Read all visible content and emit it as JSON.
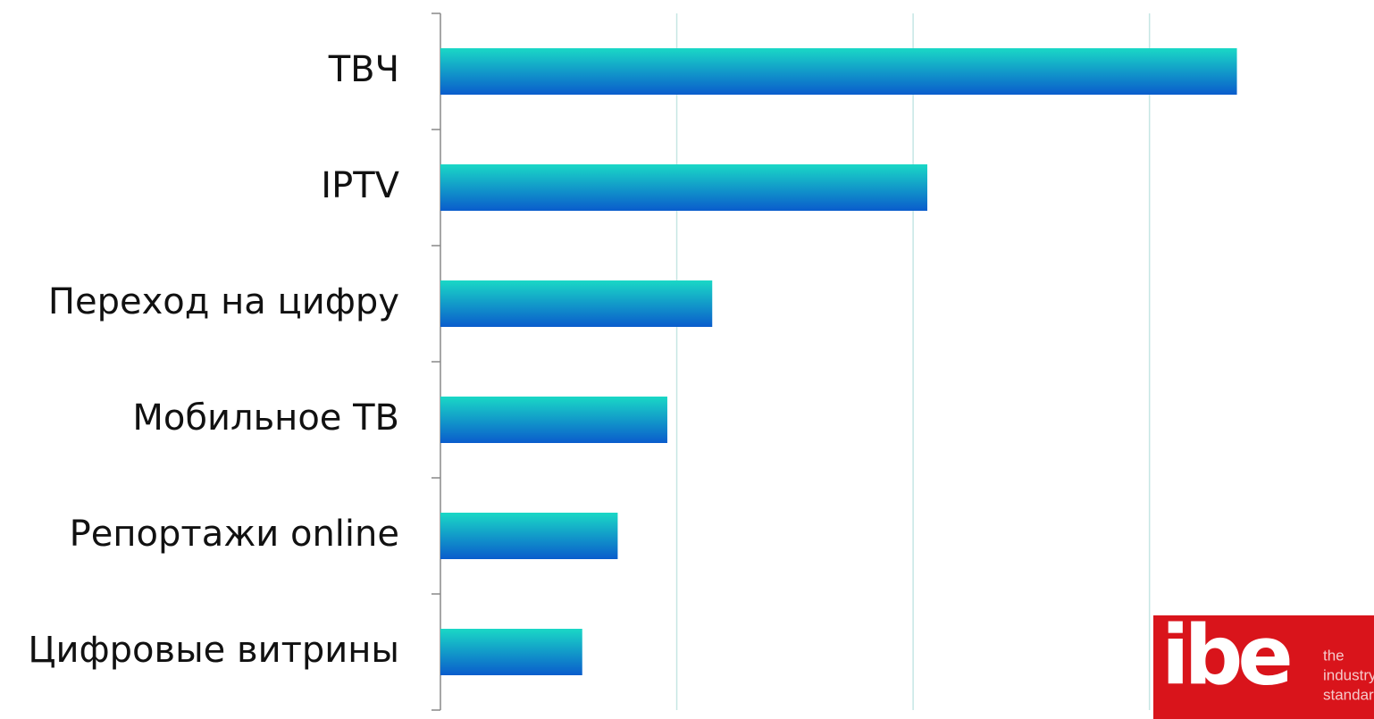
{
  "chart_data": {
    "type": "bar",
    "orientation": "horizontal",
    "categories": [
      "ТВЧ",
      "IPTV",
      "Переход на цифру",
      "Мобильное ТВ",
      "Репортажи online",
      "Цифровые витрины"
    ],
    "values": [
      3.37,
      2.06,
      1.15,
      0.96,
      0.75,
      0.6
    ],
    "color_top": "#1ad8c6",
    "color_bottom": "#0a5ccc",
    "xlim": [
      0,
      3.95
    ],
    "xticks": [
      0,
      1,
      2,
      3
    ],
    "grid": true
  },
  "logo": {
    "brand": "ibe",
    "tagline": [
      "the",
      "industry",
      "standard"
    ],
    "color": "#d9141b"
  }
}
